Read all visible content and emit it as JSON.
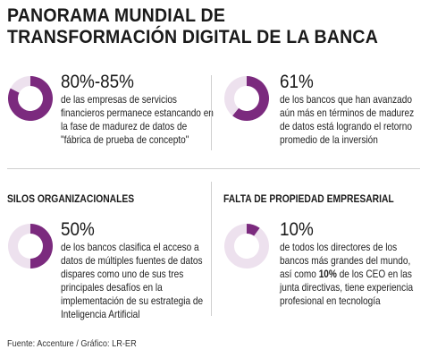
{
  "title": "PANORAMA MUNDIAL DE TRANSFORMACIÓN DIGITAL DE LA BANCA",
  "source": "Fuente: Accenture / Gráfico: LR-ER",
  "colors": {
    "accent": "#7b2a7e",
    "light": "#ede1ee"
  },
  "chart_data": [
    {
      "type": "pie",
      "title": "",
      "value_label": "80%-85%",
      "values": [
        82.5,
        17.5
      ],
      "description": "de las empresas de servicios financieros permanece estancando en la fase de madurez de datos de \"fábrica de prueba de concepto\""
    },
    {
      "type": "pie",
      "title": "",
      "value_label": "61%",
      "values": [
        61,
        39
      ],
      "description": "de los bancos que han avanzado aún más en términos de madurez de datos está logrando el retorno promedio de la inversión"
    },
    {
      "type": "pie",
      "title": "SILOS ORGANIZACIONALES",
      "value_label": "50%",
      "values": [
        50,
        50
      ],
      "description": "de los bancos clasifica el acceso a datos de múltiples fuentes de datos dispares como uno de sus tres principales desafíos en la implementación de su estrategia de Inteligencia Artificial"
    },
    {
      "type": "pie",
      "title": "FALTA DE PROPIEDAD EMPRESARIAL",
      "value_label": "10%",
      "values": [
        10,
        90
      ],
      "description_parts": [
        "de todos los directores de los bancos más grandes del mundo, así como ",
        "10%",
        " de los CEO en las junta directivas, tiene experiencia profesional en tecnología"
      ]
    }
  ]
}
